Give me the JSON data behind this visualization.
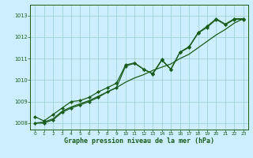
{
  "xlabel": "Graphe pression niveau de la mer (hPa)",
  "background_color": "#cceeff",
  "line_color": "#1a5c1a",
  "grid_color": "#99cccc",
  "xlim": [
    -0.5,
    23.5
  ],
  "ylim": [
    1007.7,
    1013.5
  ],
  "yticks": [
    1008,
    1009,
    1010,
    1011,
    1012,
    1013
  ],
  "xticks": [
    0,
    1,
    2,
    3,
    4,
    5,
    6,
    7,
    8,
    9,
    10,
    11,
    12,
    13,
    14,
    15,
    16,
    17,
    18,
    19,
    20,
    21,
    22,
    23
  ],
  "series1_x": [
    0,
    1,
    2,
    3,
    4,
    5,
    6,
    7,
    8,
    9,
    10,
    11,
    12,
    13,
    14,
    15,
    16,
    17,
    18,
    19,
    20,
    21,
    22,
    23
  ],
  "series1_y": [
    1008.3,
    1008.1,
    1008.4,
    1008.7,
    1009.0,
    1009.05,
    1009.2,
    1009.45,
    1009.65,
    1009.85,
    1010.7,
    1010.8,
    1010.5,
    1010.3,
    1010.95,
    1010.5,
    1011.3,
    1011.55,
    1012.2,
    1012.5,
    1012.85,
    1012.6,
    1012.85,
    1012.85
  ],
  "series2_x": [
    0,
    1,
    2,
    3,
    4,
    5,
    6,
    7,
    8,
    9,
    10,
    11,
    12,
    13,
    14,
    15,
    16,
    17,
    18,
    19,
    20,
    21,
    22,
    23
  ],
  "series2_y": [
    1008.0,
    1008.05,
    1008.2,
    1008.55,
    1008.75,
    1008.9,
    1009.05,
    1009.25,
    1009.45,
    1009.65,
    1009.9,
    1010.1,
    1010.25,
    1010.45,
    1010.6,
    1010.75,
    1011.0,
    1011.2,
    1011.5,
    1011.8,
    1012.1,
    1012.35,
    1012.65,
    1012.85
  ],
  "series3_x": [
    0,
    1,
    2,
    3,
    4,
    5,
    6,
    7,
    8,
    9,
    10,
    11,
    12,
    13,
    14,
    15,
    16,
    17,
    18,
    19,
    20,
    21,
    22,
    23
  ],
  "series3_y": [
    1008.0,
    1008.0,
    1008.15,
    1008.5,
    1008.7,
    1008.85,
    1009.0,
    1009.2,
    1009.45,
    1009.65,
    1010.65,
    1010.78,
    1010.5,
    1010.28,
    1010.92,
    1010.5,
    1011.28,
    1011.52,
    1012.18,
    1012.45,
    1012.82,
    1012.57,
    1012.82,
    1012.82
  ]
}
